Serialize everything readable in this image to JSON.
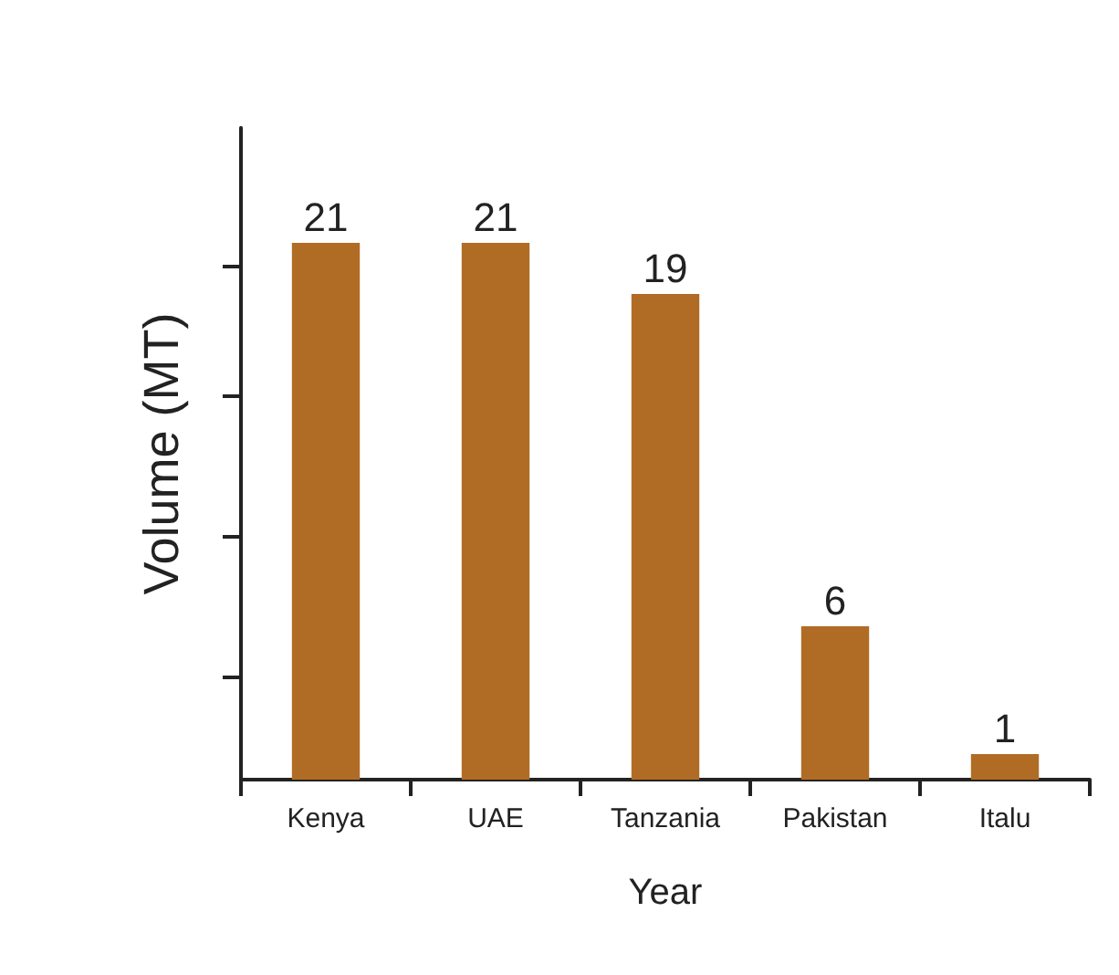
{
  "chart_data": {
    "type": "bar",
    "categories": [
      "Kenya",
      "UAE",
      "Tanzania",
      "Pakistan",
      "Italu"
    ],
    "values": [
      21,
      21,
      19,
      6,
      1
    ],
    "color": "#b06c24",
    "data_labels": true,
    "xlabel": "Year",
    "ylabel": "Volume (MT)",
    "ylim": [
      0,
      25.5
    ],
    "yticks": [
      {
        "value": 4,
        "label": null
      },
      {
        "value": 9.5,
        "label": null
      },
      {
        "value": 15,
        "label": null
      },
      {
        "value": 20.1,
        "label": null
      }
    ],
    "tick_labels": "x",
    "grid": false
  }
}
